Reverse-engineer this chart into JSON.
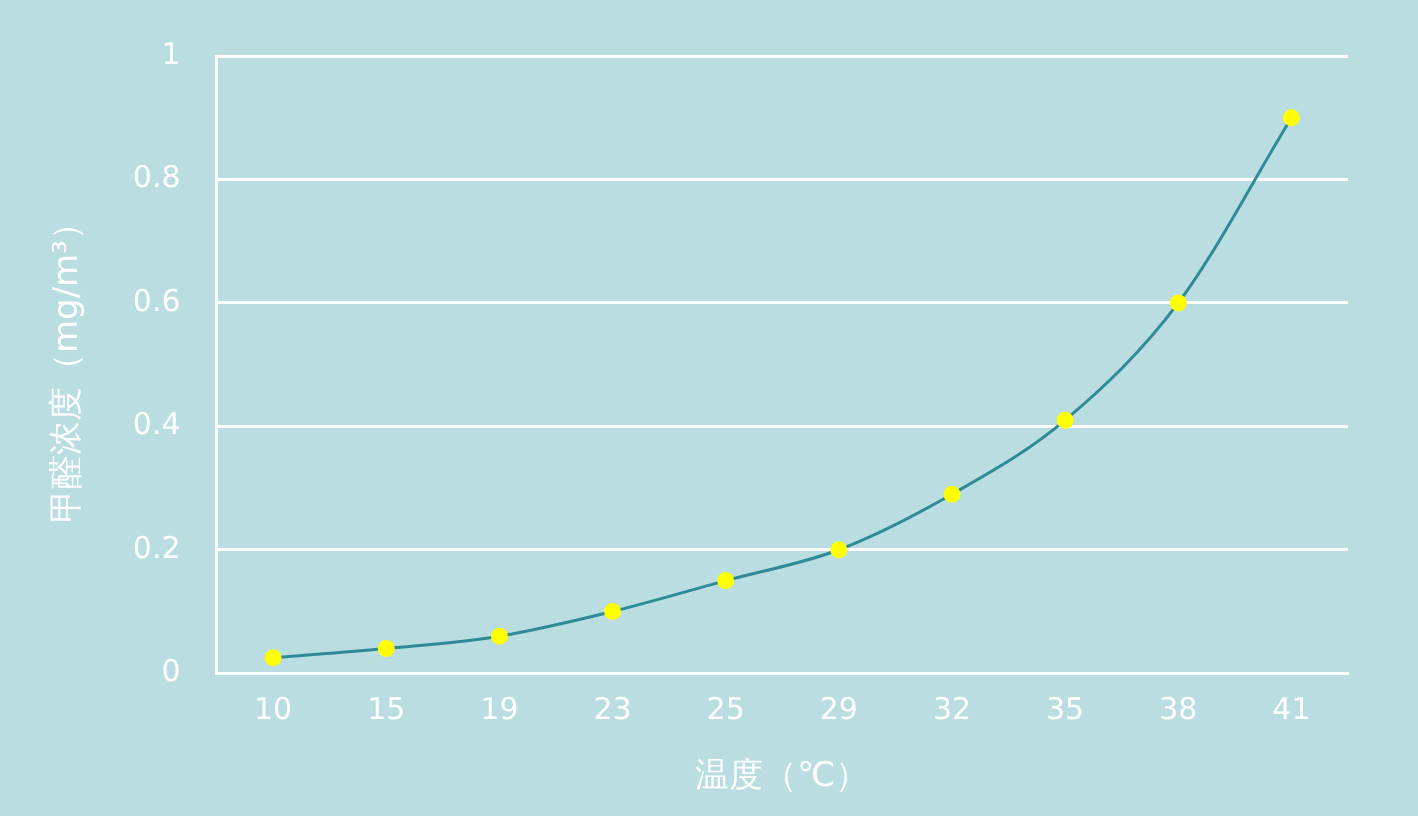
{
  "chart_data": {
    "type": "line",
    "xlabel": "温度（℃）",
    "ylabel": "甲醛浓度（mg/m³）",
    "categories": [
      "10",
      "15",
      "19",
      "23",
      "25",
      "29",
      "32",
      "35",
      "38",
      "41"
    ],
    "series": [
      {
        "color": "#2f8a98",
        "colors": [
          "#ffff00",
          "#ffff00",
          "#ffff00",
          "#ffff00",
          "#ffff00",
          "#ffff00",
          "#ffff00",
          "#ffff00",
          "#ffff00",
          "#ffff00"
        ],
        "values": [
          0.025,
          0.04,
          0.06,
          0.1,
          0.15,
          0.2,
          0.29,
          0.41,
          0.6,
          0.9
        ]
      }
    ],
    "ylim": [
      0,
      1
    ],
    "yticks": [
      0,
      0.2,
      0.4,
      0.6,
      0.8,
      1
    ],
    "grid": "y",
    "legend": false,
    "marker": "circle"
  }
}
